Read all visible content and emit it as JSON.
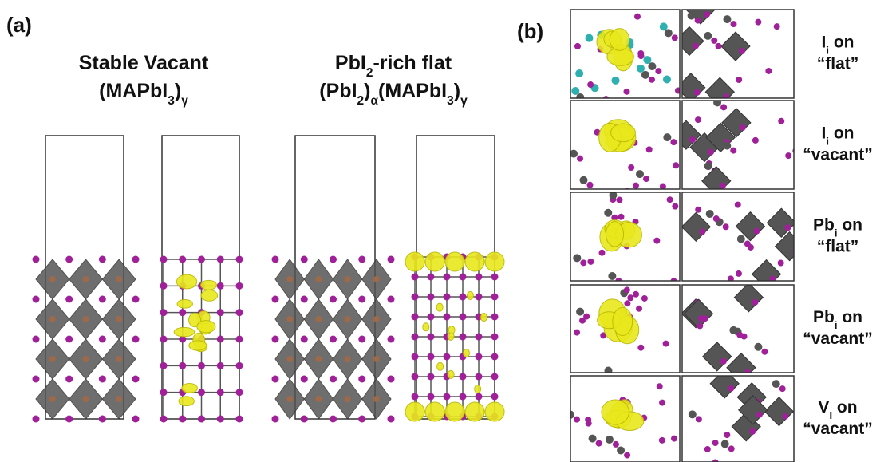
{
  "panel_a": {
    "label": "(a)",
    "structures": [
      {
        "lines": [
          [
            {
              "text": "Stable Vacant"
            }
          ],
          [
            {
              "text": "(MAPbI"
            },
            {
              "text": "3",
              "sub": true
            },
            {
              "text": ")"
            },
            {
              "text": "γ",
              "sub": true
            }
          ]
        ]
      },
      {
        "lines": [
          [
            {
              "text": "PbI"
            },
            {
              "text": "2",
              "sub": true
            },
            {
              "text": "-rich flat"
            }
          ],
          [
            {
              "text": "(PbI"
            },
            {
              "text": "2",
              "sub": true
            },
            {
              "text": ")"
            },
            {
              "text": "α",
              "sub": true
            },
            {
              "text": "(MAPbI"
            },
            {
              "text": "3",
              "sub": true
            },
            {
              "text": ")"
            },
            {
              "text": "γ",
              "sub": true
            }
          ]
        ]
      }
    ]
  },
  "panel_b": {
    "label": "(b)",
    "rows": [
      {
        "lines": [
          [
            {
              "text": "I"
            },
            {
              "text": "i",
              "sub": true
            },
            {
              "text": " on"
            }
          ],
          [
            {
              "text": "“flat”"
            }
          ]
        ]
      },
      {
        "lines": [
          [
            {
              "text": "I"
            },
            {
              "text": "i",
              "sub": true
            },
            {
              "text": " on"
            }
          ],
          [
            {
              "text": "“vacant”"
            }
          ]
        ]
      },
      {
        "lines": [
          [
            {
              "text": "Pb"
            },
            {
              "text": "i",
              "sub": true
            },
            {
              "text": " on"
            }
          ],
          [
            {
              "text": "“flat”"
            }
          ]
        ]
      },
      {
        "lines": [
          [
            {
              "text": "Pb"
            },
            {
              "text": "i",
              "sub": true
            },
            {
              "text": " on"
            }
          ],
          [
            {
              "text": "“vacant”"
            }
          ]
        ]
      },
      {
        "lines": [
          [
            {
              "text": "V"
            },
            {
              "text": "I",
              "sub": true
            },
            {
              "text": " on"
            }
          ],
          [
            {
              "text": "“vacant”"
            }
          ]
        ]
      }
    ]
  }
}
